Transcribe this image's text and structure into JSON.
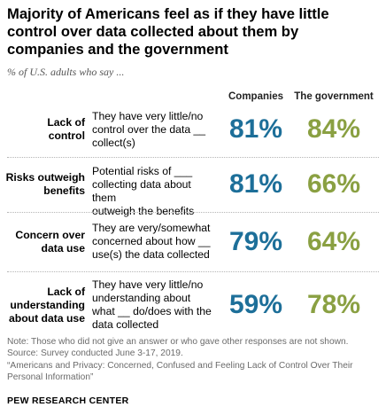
{
  "title": "Majority of Americans feel as if they have little control over data collected about them by companies and the government",
  "subtitle": "% of U.S. adults who say ...",
  "columns": {
    "companies": "Companies",
    "government": "The government"
  },
  "colors": {
    "companies": "#1d6f99",
    "government": "#8aa042"
  },
  "rows": [
    {
      "label_lines": [
        "Lack of",
        "control"
      ],
      "desc_lines": [
        "They have very little/no",
        "control over the data __",
        "collect(s)"
      ],
      "companies": "81%",
      "government": "84%"
    },
    {
      "label_lines": [
        "Risks outweigh",
        "benefits"
      ],
      "desc_lines": [
        "Potential risks of ___",
        "collecting data about them",
        "outweigh the benefits"
      ],
      "companies": "81%",
      "government": "66%"
    },
    {
      "label_lines": [
        "Concern over",
        "data use"
      ],
      "desc_lines": [
        "They are very/somewhat",
        "concerned about how __",
        "use(s) the data collected"
      ],
      "companies": "79%",
      "government": "64%"
    },
    {
      "label_lines": [
        "Lack of",
        "understanding",
        "about data use"
      ],
      "desc_lines": [
        "They have very little/no",
        "understanding about",
        "what __ do/does with the",
        "data collected"
      ],
      "companies": "59%",
      "government": "78%"
    }
  ],
  "note_lines": [
    "Note: Those who did not give an answer or who gave other responses are not shown.",
    "Source: Survey conducted June 3-17, 2019.",
    "“Americans and Privacy: Concerned, Confused and Feeling Lack of Control Over Their",
    "Personal Information”"
  ],
  "source_brand": "PEW RESEARCH CENTER",
  "chart_data": {
    "type": "table",
    "title": "Majority of Americans feel as if they have little control over data collected about them by companies and the government",
    "subtitle": "% of U.S. adults who say ...",
    "categories": [
      "Lack of control",
      "Risks outweigh benefits",
      "Concern over data use",
      "Lack of understanding about data use"
    ],
    "series": [
      {
        "name": "Companies",
        "values": [
          81,
          81,
          79,
          59
        ]
      },
      {
        "name": "The government",
        "values": [
          84,
          66,
          64,
          78
        ]
      }
    ],
    "unit": "%"
  }
}
